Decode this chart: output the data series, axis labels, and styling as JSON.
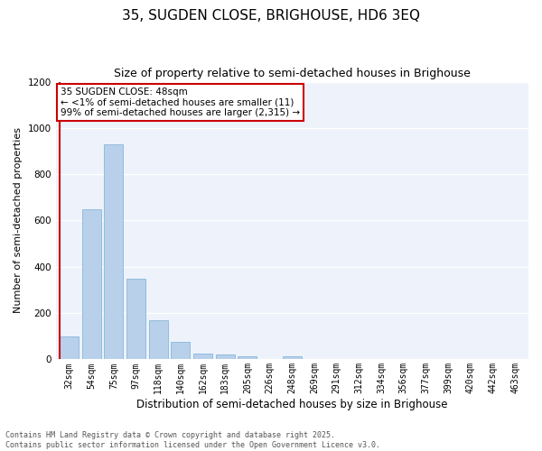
{
  "title": "35, SUGDEN CLOSE, BRIGHOUSE, HD6 3EQ",
  "subtitle": "Size of property relative to semi-detached houses in Brighouse",
  "xlabel": "Distribution of semi-detached houses by size in Brighouse",
  "ylabel": "Number of semi-detached properties",
  "categories": [
    "32sqm",
    "54sqm",
    "75sqm",
    "97sqm",
    "118sqm",
    "140sqm",
    "162sqm",
    "183sqm",
    "205sqm",
    "226sqm",
    "248sqm",
    "269sqm",
    "291sqm",
    "312sqm",
    "334sqm",
    "356sqm",
    "377sqm",
    "399sqm",
    "420sqm",
    "442sqm",
    "463sqm"
  ],
  "values": [
    100,
    650,
    930,
    350,
    170,
    75,
    25,
    20,
    15,
    0,
    15,
    0,
    0,
    0,
    0,
    0,
    0,
    0,
    0,
    0,
    0
  ],
  "bar_color": "#b8d0ea",
  "bar_edge_color": "#7aafd4",
  "highlight_line_color": "#cc0000",
  "annotation_box_text": "35 SUGDEN CLOSE: 48sqm\n← <1% of semi-detached houses are smaller (11)\n99% of semi-detached houses are larger (2,315) →",
  "annotation_box_color": "#cc0000",
  "ylim": [
    0,
    1200
  ],
  "yticks": [
    0,
    200,
    400,
    600,
    800,
    1000,
    1200
  ],
  "background_color": "#edf2fb",
  "grid_color": "#ffffff",
  "footer_line1": "Contains HM Land Registry data © Crown copyright and database right 2025.",
  "footer_line2": "Contains public sector information licensed under the Open Government Licence v3.0.",
  "title_fontsize": 11,
  "subtitle_fontsize": 9,
  "tick_fontsize": 7,
  "ylabel_fontsize": 8,
  "xlabel_fontsize": 8.5,
  "annotation_fontsize": 7.5,
  "footer_fontsize": 6
}
